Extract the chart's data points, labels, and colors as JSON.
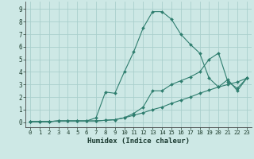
{
  "xlabel": "Humidex (Indice chaleur)",
  "ylabel": "",
  "bg_color": "#cde8e5",
  "grid_color": "#aacfcc",
  "line_color": "#2e7d6e",
  "xlim": [
    -0.5,
    23.5
  ],
  "ylim": [
    -0.4,
    9.6
  ],
  "xticks": [
    0,
    1,
    2,
    3,
    4,
    5,
    6,
    7,
    8,
    9,
    10,
    11,
    12,
    13,
    14,
    15,
    16,
    17,
    18,
    19,
    20,
    21,
    22,
    23
  ],
  "yticks": [
    0,
    1,
    2,
    3,
    4,
    5,
    6,
    7,
    8,
    9
  ],
  "line1_x": [
    0,
    1,
    2,
    3,
    4,
    5,
    6,
    7,
    8,
    9,
    10,
    11,
    12,
    13,
    14,
    15,
    16,
    17,
    18,
    19,
    20,
    21,
    22,
    23
  ],
  "line1_y": [
    0.05,
    0.05,
    0.05,
    0.1,
    0.1,
    0.1,
    0.1,
    0.1,
    0.15,
    0.2,
    0.35,
    0.55,
    0.75,
    1.0,
    1.2,
    1.5,
    1.75,
    2.0,
    2.3,
    2.55,
    2.8,
    3.0,
    3.2,
    3.5
  ],
  "line2_x": [
    0,
    1,
    2,
    3,
    4,
    5,
    6,
    7,
    8,
    9,
    10,
    11,
    12,
    13,
    14,
    15,
    16,
    17,
    18,
    19,
    20,
    21,
    22,
    23
  ],
  "line2_y": [
    0.05,
    0.05,
    0.05,
    0.1,
    0.1,
    0.1,
    0.1,
    0.35,
    2.4,
    2.3,
    4.0,
    5.6,
    7.5,
    8.8,
    8.8,
    8.2,
    7.0,
    6.2,
    5.5,
    3.5,
    2.8,
    3.4,
    2.5,
    3.5
  ],
  "line3_x": [
    0,
    1,
    2,
    3,
    4,
    5,
    6,
    7,
    8,
    9,
    10,
    11,
    12,
    13,
    14,
    15,
    16,
    17,
    18,
    19,
    20,
    21,
    22,
    23
  ],
  "line3_y": [
    0.05,
    0.05,
    0.05,
    0.1,
    0.1,
    0.1,
    0.1,
    0.1,
    0.15,
    0.2,
    0.35,
    0.7,
    1.2,
    2.5,
    2.5,
    3.0,
    3.3,
    3.6,
    4.0,
    5.0,
    5.5,
    3.2,
    2.7,
    3.5
  ]
}
